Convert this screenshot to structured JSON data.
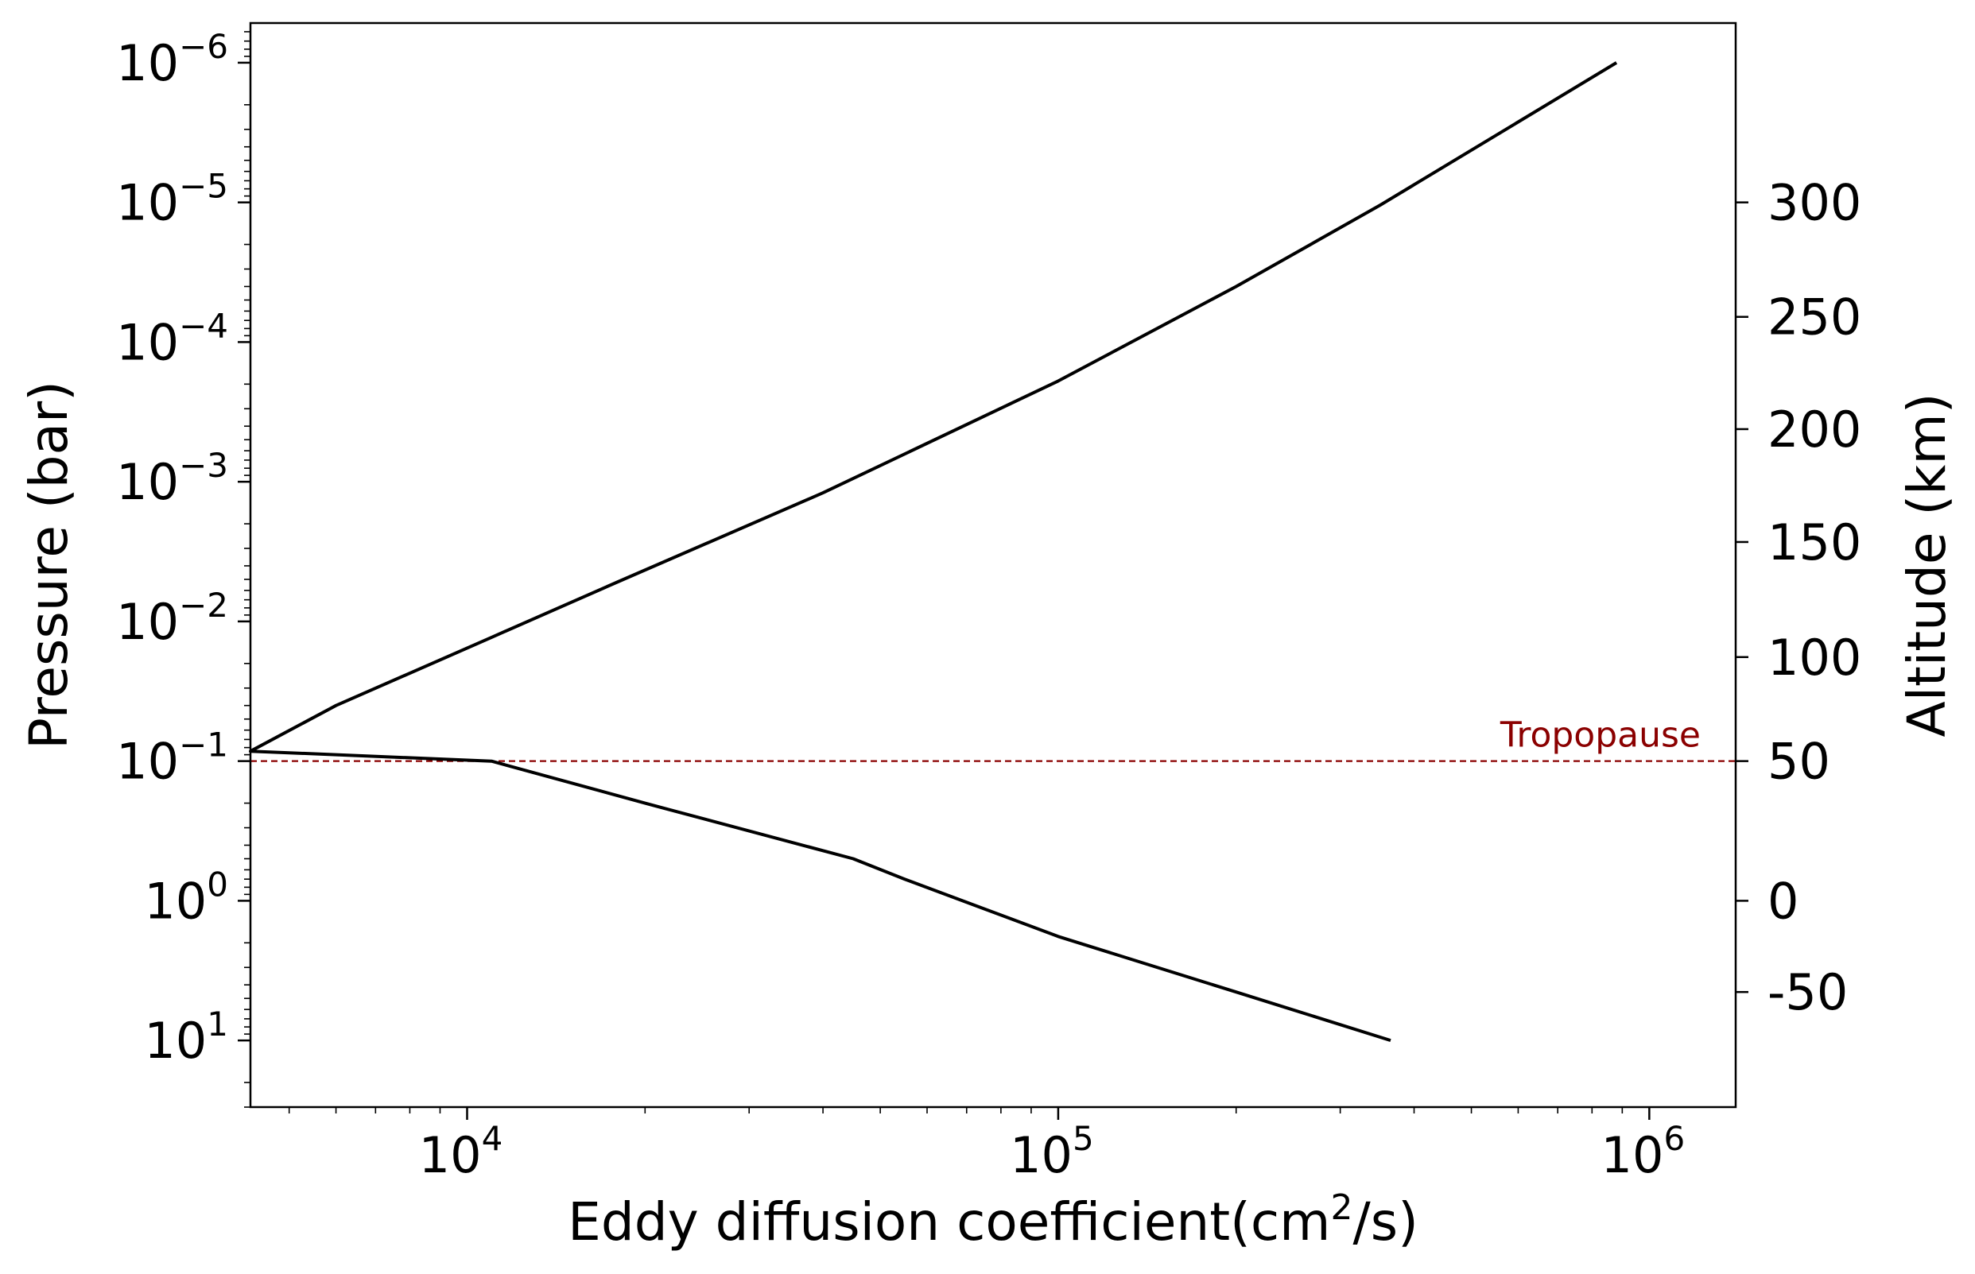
{
  "chart_data": {
    "type": "line",
    "xlabel": "Eddy diffusion coefficient(cm²/s)",
    "xlabel_parts": {
      "base": "Eddy diffusion coefficient(cm",
      "sup": "2",
      "tail": "/s)"
    },
    "ylabel": "Pressure (bar)",
    "ylabel_right": "Altitude (km)",
    "x_scale": "log",
    "y_scale": "log",
    "y_inverted": true,
    "xlim": [
      4300,
      1400000
    ],
    "ylim": [
      30,
      5.2e-07
    ],
    "x_ticks": [
      {
        "value": 10000,
        "base": "10",
        "exp": "4"
      },
      {
        "value": 100000,
        "base": "10",
        "exp": "5"
      },
      {
        "value": 1000000,
        "base": "10",
        "exp": "6"
      }
    ],
    "y_ticks": [
      {
        "value": 1e-06,
        "base": "10",
        "exp": "−6"
      },
      {
        "value": 1e-05,
        "base": "10",
        "exp": "−5"
      },
      {
        "value": 0.0001,
        "base": "10",
        "exp": "−4"
      },
      {
        "value": 0.001,
        "base": "10",
        "exp": "−3"
      },
      {
        "value": 0.01,
        "base": "10",
        "exp": "−2"
      },
      {
        "value": 0.1,
        "base": "10",
        "exp": "−1"
      },
      {
        "value": 1,
        "base": "10",
        "exp": "0"
      },
      {
        "value": 10,
        "base": "10",
        "exp": "1"
      }
    ],
    "right_ticks": [
      {
        "label": "300",
        "pressure": 1e-05
      },
      {
        "label": "250",
        "pressure": 6.6e-05
      },
      {
        "label": "200",
        "pressure": 0.00042
      },
      {
        "label": "150",
        "pressure": 0.0027
      },
      {
        "label": "100",
        "pressure": 0.018
      },
      {
        "label": "50",
        "pressure": 0.1
      },
      {
        "label": "0",
        "pressure": 1.0
      },
      {
        "label": "-50",
        "pressure": 4.5
      }
    ],
    "series": [
      {
        "color": "#000000",
        "points": [
          [
            365000,
            10
          ],
          [
            200000,
            4.5
          ],
          [
            100000,
            1.8
          ],
          [
            55000,
            0.7
          ],
          [
            45000,
            0.5
          ],
          [
            20000,
            0.2
          ],
          [
            11000,
            0.1
          ],
          [
            4300,
            0.085
          ],
          [
            6000,
            0.04
          ],
          [
            11000,
            0.013
          ],
          [
            18000,
            0.0052
          ],
          [
            40000,
            0.0012
          ],
          [
            100000,
            0.00019
          ],
          [
            200000,
            4e-05
          ],
          [
            350000,
            1.05e-05
          ],
          [
            880000,
            1e-06
          ]
        ]
      }
    ],
    "annotations": [
      {
        "text": "Tropopause",
        "type": "hline",
        "y": 0.1,
        "color": "#8b0000",
        "style": "dashed"
      }
    ]
  }
}
